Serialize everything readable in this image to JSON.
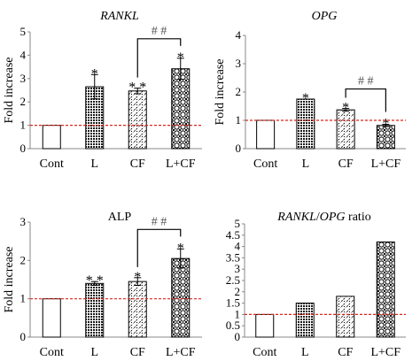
{
  "colors": {
    "bar_outline": "#000000",
    "reference_line": "#d9261c",
    "axis": "#888888",
    "hash_text": "#555555"
  },
  "chart_data": [
    {
      "type": "bar",
      "title": "RANKL",
      "title_style": "italic",
      "ylabel": "Fold increase",
      "categories": [
        "Cont",
        "L",
        "CF",
        "L+CF"
      ],
      "values": [
        1.0,
        2.65,
        2.47,
        3.42
      ],
      "errors": [
        0,
        0.52,
        0.12,
        0.45
      ],
      "patterns": [
        "none",
        "dots",
        "diagonal",
        "circles"
      ],
      "ylim": [
        0,
        5
      ],
      "yticks": [
        0,
        1,
        2,
        3,
        4,
        5
      ],
      "reference_line": 1,
      "significance": [
        "",
        "*",
        "* *",
        "*"
      ],
      "bracket": {
        "from": "CF",
        "to": "L+CF",
        "label": "# #"
      }
    },
    {
      "type": "bar",
      "title": "OPG",
      "title_style": "italic",
      "ylabel": "Fold increase",
      "categories": [
        "Cont",
        "L",
        "CF",
        "L+CF"
      ],
      "values": [
        1.0,
        1.75,
        1.37,
        0.82
      ],
      "errors": [
        0,
        0,
        0.05,
        0.04
      ],
      "patterns": [
        "none",
        "dots",
        "diagonal",
        "circles"
      ],
      "ylim": [
        0,
        4
      ],
      "yticks": [
        0,
        1,
        2,
        3,
        4
      ],
      "reference_line": 1,
      "significance": [
        "",
        "*",
        "*",
        "*"
      ],
      "bracket": {
        "from": "CF",
        "to": "L+CF",
        "label": "# #"
      }
    },
    {
      "type": "bar",
      "title": "ALP",
      "title_style": "normal",
      "ylabel": "Fold increase",
      "categories": [
        "Cont",
        "L",
        "CF",
        "L+CF"
      ],
      "values": [
        1.0,
        1.4,
        1.45,
        2.05
      ],
      "errors": [
        0,
        0.05,
        0.1,
        0.25
      ],
      "patterns": [
        "none",
        "dots",
        "diagonal",
        "circles"
      ],
      "ylim": [
        0,
        3
      ],
      "yticks": [
        0,
        1,
        2,
        3
      ],
      "reference_line": 1,
      "significance": [
        "",
        "* *",
        "*",
        "*"
      ],
      "bracket": {
        "from": "CF",
        "to": "L+CF",
        "label": "# #"
      }
    },
    {
      "type": "bar",
      "title_parts": [
        {
          "text": "RANKL",
          "style": "italic"
        },
        {
          "text": "/",
          "style": "normal"
        },
        {
          "text": "OPG",
          "style": "italic"
        },
        {
          "text": " ratio",
          "style": "normal"
        }
      ],
      "ylabel": "",
      "categories": [
        "Cont",
        "L",
        "CF",
        "L+CF"
      ],
      "values": [
        1.0,
        1.5,
        1.8,
        4.2
      ],
      "errors": [
        0,
        0,
        0,
        0
      ],
      "patterns": [
        "none",
        "dots",
        "diagonal",
        "circles"
      ],
      "ylim": [
        0,
        5
      ],
      "yticks": [
        0,
        0.5,
        1,
        1.5,
        2,
        2.5,
        3,
        3.5,
        4,
        4.5,
        5
      ],
      "ytick_labels": [
        "0",
        "0.5",
        "1",
        "1.5",
        "2",
        "2.5",
        "3",
        "3.5",
        "4",
        "4.5",
        "5"
      ],
      "reference_line": 1,
      "significance": [
        "",
        "",
        "",
        ""
      ],
      "bracket": null
    }
  ]
}
